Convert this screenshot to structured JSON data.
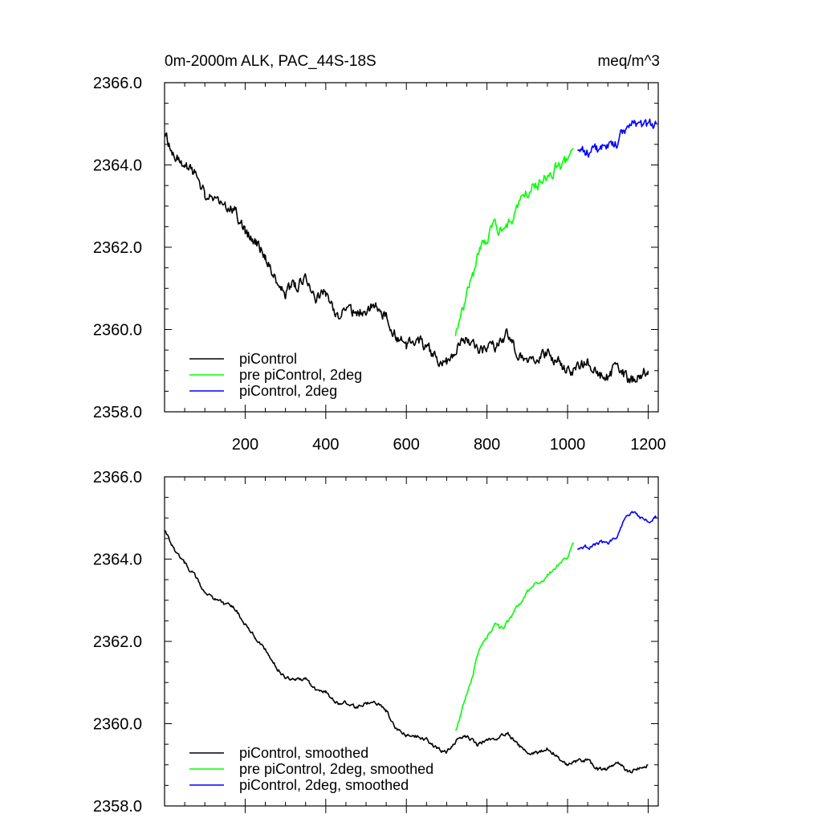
{
  "header": {
    "title_left": "0m-2000m ALK, PAC_44S-18S",
    "title_right": "meq/m^3"
  },
  "colors": {
    "piControl": "#000000",
    "pre_piControl_2deg": "#00ff00",
    "piControl_2deg": "#0000ff"
  },
  "chart_data": [
    {
      "type": "line",
      "title": "0m-2000m ALK, PAC_44S-18S",
      "units": "meq/m^3",
      "xlim": [
        0,
        1225
      ],
      "ylim": [
        2358.0,
        2366.0
      ],
      "x_ticks": [
        200,
        400,
        600,
        800,
        1000,
        1200
      ],
      "x_tick_labels": [
        "200",
        "400",
        "600",
        "800",
        "1000",
        "1200"
      ],
      "y_ticks": [
        2358.0,
        2360.0,
        2362.0,
        2364.0,
        2366.0
      ],
      "y_tick_labels": [
        "2358.0",
        "2360.0",
        "2362.0",
        "2364.0",
        "2366.0"
      ],
      "legend_position": "bottom-left",
      "series": [
        {
          "name": "piControl",
          "color": "#000000",
          "x": [
            1,
            25,
            50,
            75,
            100,
            125,
            150,
            175,
            200,
            225,
            250,
            275,
            300,
            325,
            350,
            375,
            400,
            425,
            450,
            475,
            500,
            525,
            550,
            575,
            600,
            625,
            650,
            675,
            700,
            725,
            750,
            775,
            800,
            825,
            850,
            875,
            900,
            925,
            950,
            975,
            1000,
            1025,
            1050,
            1075,
            1100,
            1125,
            1150,
            1175,
            1200
          ],
          "y": [
            2364.7,
            2364.3,
            2364.0,
            2363.8,
            2363.3,
            2363.1,
            2362.9,
            2362.9,
            2362.4,
            2362.1,
            2361.8,
            2361.3,
            2360.9,
            2361.1,
            2361.2,
            2360.7,
            2360.9,
            2360.3,
            2360.5,
            2360.4,
            2360.5,
            2360.6,
            2360.3,
            2359.8,
            2359.6,
            2359.8,
            2359.6,
            2359.3,
            2359.2,
            2359.6,
            2359.8,
            2359.5,
            2359.5,
            2359.6,
            2359.9,
            2359.5,
            2359.2,
            2359.3,
            2359.5,
            2359.2,
            2359.0,
            2359.1,
            2359.2,
            2358.9,
            2358.8,
            2359.2,
            2358.7,
            2358.9,
            2359.0
          ]
        },
        {
          "name": "pre piControl, 2deg",
          "color": "#00ff00",
          "x": [
            722,
            740,
            760,
            780,
            800,
            820,
            840,
            860,
            880,
            900,
            920,
            940,
            960,
            980,
            1000,
            1015
          ],
          "y": [
            2359.8,
            2360.5,
            2361.1,
            2361.9,
            2362.2,
            2362.5,
            2362.3,
            2362.7,
            2363.0,
            2363.3,
            2363.5,
            2363.6,
            2363.8,
            2364.0,
            2364.1,
            2364.4
          ]
        },
        {
          "name": "piControl, 2deg",
          "color": "#0000ff",
          "x": [
            1025,
            1040,
            1060,
            1080,
            1100,
            1120,
            1140,
            1160,
            1180,
            1200,
            1220
          ],
          "y": [
            2364.3,
            2364.3,
            2364.4,
            2364.4,
            2364.5,
            2364.5,
            2364.9,
            2365.1,
            2365.0,
            2364.9,
            2365.0
          ]
        }
      ]
    },
    {
      "type": "line",
      "xlim": [
        0,
        1225
      ],
      "ylim": [
        2358.0,
        2366.0
      ],
      "y_ticks": [
        2358.0,
        2360.0,
        2362.0,
        2364.0,
        2366.0
      ],
      "y_tick_labels": [
        "2358.0",
        "2360.0",
        "2362.0",
        "2364.0",
        "2366.0"
      ],
      "legend_position": "bottom-left",
      "series": [
        {
          "name": "piControl, smoothed",
          "color": "#000000",
          "x": [
            1,
            25,
            50,
            75,
            100,
            125,
            150,
            175,
            200,
            225,
            250,
            275,
            300,
            325,
            350,
            375,
            400,
            425,
            450,
            475,
            500,
            525,
            550,
            575,
            600,
            625,
            650,
            675,
            700,
            725,
            750,
            775,
            800,
            825,
            850,
            875,
            900,
            925,
            950,
            975,
            1000,
            1025,
            1050,
            1075,
            1100,
            1125,
            1150,
            1175,
            1200
          ],
          "y": [
            2364.7,
            2364.2,
            2363.9,
            2363.6,
            2363.2,
            2363.0,
            2362.9,
            2362.8,
            2362.4,
            2362.1,
            2361.8,
            2361.4,
            2361.1,
            2361.1,
            2361.1,
            2360.8,
            2360.8,
            2360.5,
            2360.5,
            2360.4,
            2360.5,
            2360.5,
            2360.3,
            2359.9,
            2359.7,
            2359.7,
            2359.6,
            2359.4,
            2359.3,
            2359.6,
            2359.7,
            2359.5,
            2359.6,
            2359.6,
            2359.8,
            2359.5,
            2359.3,
            2359.3,
            2359.4,
            2359.2,
            2359.0,
            2359.1,
            2359.1,
            2358.9,
            2358.9,
            2359.1,
            2358.8,
            2358.9,
            2359.0
          ]
        },
        {
          "name": "pre piControl, 2deg, smoothed",
          "color": "#00ff00",
          "x": [
            722,
            740,
            760,
            780,
            800,
            820,
            840,
            860,
            880,
            900,
            920,
            940,
            960,
            980,
            1000,
            1015
          ],
          "y": [
            2359.8,
            2360.4,
            2361.0,
            2361.8,
            2362.1,
            2362.4,
            2362.3,
            2362.6,
            2362.9,
            2363.2,
            2363.4,
            2363.5,
            2363.7,
            2363.9,
            2364.0,
            2364.4
          ]
        },
        {
          "name": "piControl, 2deg, smoothed",
          "color": "#0000ff",
          "x": [
            1025,
            1040,
            1060,
            1080,
            1100,
            1120,
            1140,
            1160,
            1180,
            1200,
            1220
          ],
          "y": [
            2364.2,
            2364.3,
            2364.3,
            2364.4,
            2364.4,
            2364.5,
            2364.9,
            2365.2,
            2365.0,
            2364.9,
            2365.0
          ]
        }
      ]
    }
  ]
}
